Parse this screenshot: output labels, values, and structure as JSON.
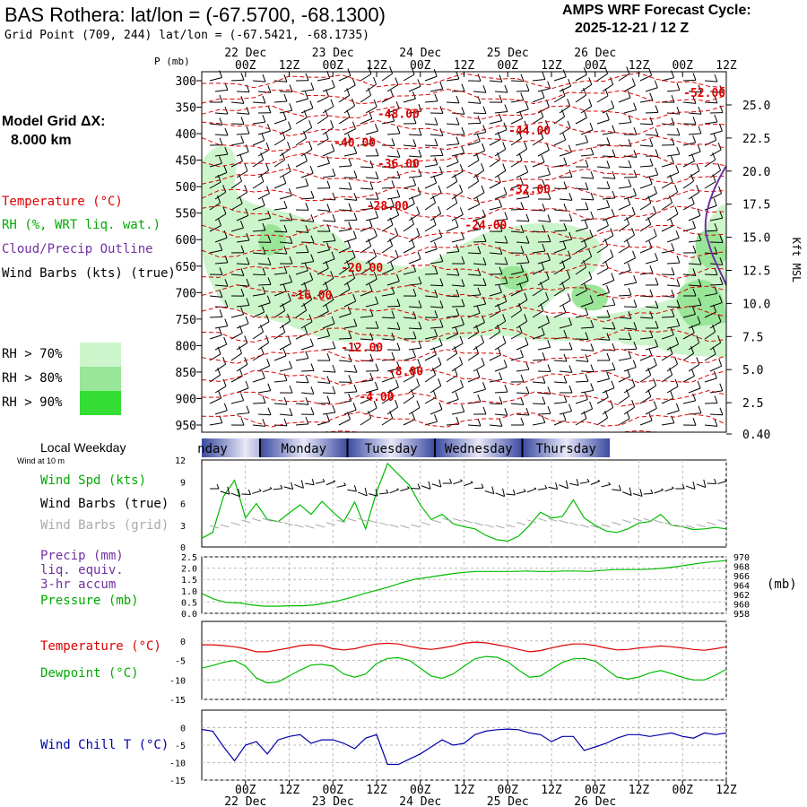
{
  "header": {
    "title": "BAS Rothera:  lat/lon = (-67.5700, -68.1300)",
    "grid_point": "Grid Point (709, 244) lat/lon = (-67.5421, -68.1735)",
    "cycle_label": "AMPS WRF Forecast Cycle:",
    "cycle_value": "2025-12-21 / 12  Z",
    "p_label": "P (mb)"
  },
  "model": {
    "label": "Model Grid ΔX:",
    "value": "8.000 km"
  },
  "legend_upper": {
    "temperature": "Temperature (°C)",
    "rh": "RH (%, WRT liq. wat.)",
    "cloud": "Cloud/Precip Outline",
    "wind": "Wind Barbs (kts) (true)",
    "rh70": "RH > 70%",
    "rh80": "RH > 80%",
    "rh90": "RH > 90%",
    "kft": "Kft MSL"
  },
  "legend_lower": {
    "local_weekday": "Local Weekday",
    "wind_at": "Wind at 10 m",
    "wind_spd": "Wind Spd (kts)",
    "wind_barbs_true": "Wind Barbs (true)",
    "wind_barbs_grid": "Wind Barbs (grid)",
    "precip1": "Precip (mm)",
    "precip2": "liq. equiv.",
    "precip3": "3-hr accum",
    "pressure": "Pressure (mb)",
    "mb": "(mb)",
    "temperature": "Temperature (°C)",
    "dewpoint": "Dewpoint (°C)",
    "windchill": "Wind Chill T (°C)"
  },
  "colors": {
    "red": "#dd0000",
    "green": "#00bb00",
    "purple": "#7030a0",
    "blue": "#0000aa",
    "grey": "#aaaaaa",
    "rh70": "#ccf5cc",
    "rh80": "#99e699",
    "rh90": "#33dd33"
  },
  "chart_data": {
    "time_axis": {
      "hours_range": [
        -12,
        132
      ],
      "tick_hours": [
        0,
        12,
        24,
        36,
        48,
        60,
        72,
        84,
        96,
        108,
        120,
        132
      ],
      "tick_labels": [
        "00Z",
        "12Z",
        "00Z",
        "12Z",
        "00Z",
        "12Z",
        "00Z",
        "12Z",
        "00Z",
        "12Z",
        "00Z",
        "12Z"
      ],
      "date_hours": [
        0,
        24,
        48,
        72,
        96
      ],
      "date_labels": [
        "22 Dec",
        "23 Dec",
        "24 Dec",
        "25 Dec",
        "26 Dec"
      ]
    },
    "weekdays": [
      "nday",
      "Monday",
      "Tuesday",
      "Wednesday",
      "Thursday"
    ],
    "cross_section": {
      "type": "time-height",
      "pressure_ticks": [
        300,
        350,
        400,
        450,
        500,
        550,
        600,
        650,
        700,
        750,
        800,
        850,
        900,
        950
      ],
      "kft_ticks": [
        "25.0",
        "22.5",
        "20.0",
        "17.5",
        "15.0",
        "12.5",
        "10.0",
        "7.5",
        "5.0",
        "2.5",
        "0.40"
      ],
      "isotherm_labels": [
        {
          "text": "-52.00",
          "h": 126,
          "p": 322
        },
        {
          "text": "-48.00",
          "h": 42,
          "p": 362
        },
        {
          "text": "-44.00",
          "h": 78,
          "p": 393
        },
        {
          "text": "-40.00",
          "h": 30,
          "p": 416
        },
        {
          "text": "-36.00",
          "h": 42,
          "p": 456
        },
        {
          "text": "-32.00",
          "h": 78,
          "p": 504
        },
        {
          "text": "-28.00",
          "h": 39,
          "p": 535
        },
        {
          "text": "-24.00",
          "h": 66,
          "p": 572
        },
        {
          "text": "-20.00",
          "h": 32,
          "p": 652
        },
        {
          "text": "-16.00",
          "h": 18,
          "p": 704
        },
        {
          "text": "-12.00",
          "h": 32,
          "p": 803
        },
        {
          "text": "-8.00",
          "h": 44,
          "p": 848
        },
        {
          "text": "-4.00",
          "h": 36,
          "p": 896
        }
      ]
    },
    "wind_speed": {
      "type": "line",
      "ylim": [
        0,
        12
      ],
      "yticks": [
        0,
        3,
        6,
        9,
        12
      ],
      "x": [
        -12,
        -9,
        -6,
        -3,
        0,
        3,
        6,
        9,
        12,
        15,
        18,
        21,
        24,
        27,
        30,
        33,
        36,
        39,
        42,
        45,
        48,
        51,
        54,
        57,
        60,
        63,
        66,
        69,
        72,
        75,
        78,
        81,
        84,
        87,
        90,
        93,
        96,
        99,
        102,
        105,
        108,
        111,
        114,
        117,
        120,
        123,
        126,
        129,
        132
      ],
      "values": [
        1.2,
        2.0,
        7.0,
        9.2,
        4.0,
        6.0,
        3.8,
        3.5,
        4.7,
        5.8,
        4.5,
        6.3,
        4.8,
        3.5,
        6.2,
        2.5,
        7.6,
        11.5,
        10.0,
        8.5,
        5.8,
        3.8,
        4.5,
        3.2,
        2.8,
        2.5,
        1.6,
        1.0,
        0.8,
        1.5,
        3.0,
        4.8,
        4.0,
        4.2,
        6.5,
        4.0,
        3.0,
        2.2,
        2.0,
        2.5,
        3.3,
        3.5,
        4.5,
        3.0,
        2.8,
        2.4,
        2.5,
        2.7,
        2.5
      ]
    },
    "pressure": {
      "type": "line",
      "ylim": [
        958,
        970
      ],
      "yticks_left": [
        "0.0",
        "0.5",
        "1.0",
        "1.5",
        "2.0",
        "2.5"
      ],
      "yticks_right": [
        "958",
        "960",
        "962",
        "964",
        "966",
        "968",
        "970"
      ],
      "values": [
        962.2,
        961.0,
        960.3,
        960.2,
        959.8,
        959.5,
        959.5,
        959.6,
        959.6,
        959.8,
        960.2,
        960.7,
        961.4,
        962.2,
        962.9,
        963.6,
        964.5,
        965.2,
        965.6,
        966.0,
        966.4,
        966.7,
        966.9,
        966.9,
        966.9,
        966.9,
        967.0,
        966.9,
        966.9,
        967.0,
        967.0,
        966.9,
        967.1,
        967.3,
        967.3,
        967.3,
        967.4,
        967.6,
        967.9,
        968.3,
        968.7,
        969.0,
        969.2
      ]
    },
    "temperature": {
      "type": "line",
      "ylim": [
        -15,
        5
      ],
      "yticks": [
        0,
        -5,
        -10,
        -15
      ],
      "values": [
        -1.0,
        -1.0,
        -1.2,
        -1.5,
        -2.0,
        -2.8,
        -2.8,
        -2.3,
        -1.8,
        -1.2,
        -1.0,
        -1.2,
        -2.0,
        -2.3,
        -2.0,
        -1.3,
        -0.8,
        -0.6,
        -0.8,
        -1.4,
        -1.9,
        -2.2,
        -1.8,
        -1.3,
        -0.6,
        -0.3,
        -0.5,
        -1.0,
        -1.5,
        -2.2,
        -2.8,
        -2.5,
        -1.8,
        -1.2,
        -0.8,
        -0.8,
        -1.2,
        -1.8,
        -2.3,
        -2.2,
        -1.8,
        -1.6,
        -1.3,
        -1.5,
        -1.8,
        -2.2,
        -2.4,
        -2.0,
        -1.5
      ]
    },
    "dewpoint": {
      "type": "line",
      "ylim": [
        -15,
        5
      ],
      "values": [
        -7.0,
        -6.3,
        -5.5,
        -5.0,
        -6.5,
        -9.5,
        -10.8,
        -10.5,
        -9.0,
        -7.5,
        -6.2,
        -6.0,
        -6.5,
        -8.5,
        -9.3,
        -8.5,
        -5.8,
        -4.5,
        -4.3,
        -5.0,
        -7.0,
        -9.0,
        -9.6,
        -8.5,
        -6.5,
        -4.6,
        -4.0,
        -4.2,
        -5.4,
        -7.5,
        -9.3,
        -9.0,
        -7.2,
        -5.5,
        -4.6,
        -4.5,
        -5.2,
        -7.2,
        -9.3,
        -9.8,
        -9.3,
        -8.2,
        -7.6,
        -8.4,
        -9.4,
        -10.0,
        -10.0,
        -8.8,
        -7.3
      ]
    },
    "wind_chill": {
      "type": "line",
      "ylim": [
        -15,
        5
      ],
      "yticks": [
        0,
        -5,
        -10,
        -15
      ],
      "values": [
        -0.5,
        -1.0,
        -5.5,
        -9.5,
        -5.0,
        -4.0,
        -7.5,
        -3.5,
        -2.5,
        -2.0,
        -4.5,
        -3.5,
        -3.5,
        -4.5,
        -6.0,
        -3.0,
        -2.0,
        -10.5,
        -10.5,
        -9.0,
        -7.5,
        -5.5,
        -3.5,
        -5.0,
        -4.5,
        -2.0,
        -1.0,
        -0.6,
        -0.4,
        -0.6,
        -1.5,
        -2.0,
        -4.0,
        -2.5,
        -2.5,
        -6.5,
        -5.5,
        -4.5,
        -3.0,
        -2.0,
        -2.0,
        -2.5,
        -2.0,
        -1.5,
        -2.5,
        -3.0,
        -1.5,
        -2.0,
        -1.5
      ]
    }
  }
}
